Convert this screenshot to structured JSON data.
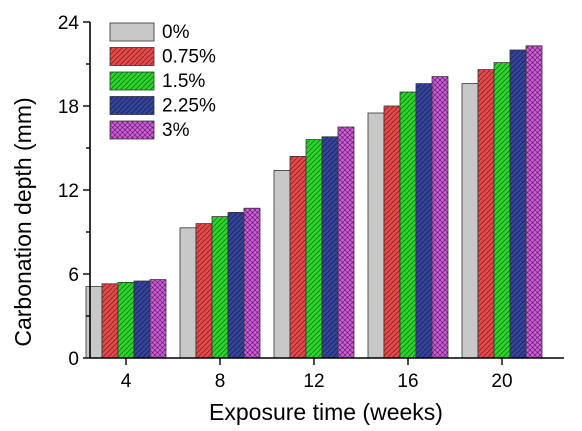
{
  "chart_data": {
    "type": "bar",
    "title": "",
    "xlabel": "Exposure time (weeks)",
    "ylabel": "Carbonation depth (mm)",
    "categories": [
      "4",
      "8",
      "12",
      "16",
      "20"
    ],
    "ylim": [
      0,
      24
    ],
    "yticks": [
      0,
      6,
      12,
      18,
      24
    ],
    "legend_position": "top-left",
    "grid": false,
    "series": [
      {
        "name": "0%",
        "color": "#c8c8c8",
        "pattern": "solid",
        "values": [
          5.1,
          9.3,
          13.4,
          17.5,
          19.6
        ]
      },
      {
        "name": "0.75%",
        "color": "#e8484a",
        "pattern": "hatch",
        "values": [
          5.3,
          9.6,
          14.4,
          18.0,
          20.6
        ]
      },
      {
        "name": "1.5%",
        "color": "#2bd62b",
        "pattern": "hatch",
        "values": [
          5.4,
          10.1,
          15.6,
          19.0,
          21.1
        ]
      },
      {
        "name": "2.25%",
        "color": "#34449c",
        "pattern": "hatch",
        "values": [
          5.5,
          10.4,
          15.8,
          19.6,
          22.0
        ]
      },
      {
        "name": "3%",
        "color": "#d45ae0",
        "pattern": "cross",
        "values": [
          5.6,
          10.7,
          16.5,
          20.1,
          22.3
        ]
      }
    ]
  }
}
